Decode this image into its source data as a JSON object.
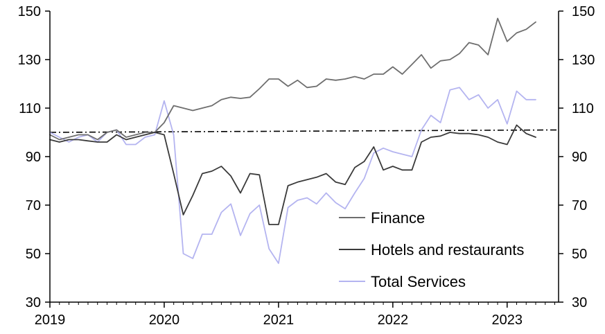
{
  "chart_data": {
    "type": "line",
    "title": "",
    "xlabel": "",
    "ylabel": "",
    "ylim": [
      30,
      150
    ],
    "y_ticks": [
      30,
      50,
      70,
      90,
      110,
      130,
      150
    ],
    "y_right_ticks": [
      30,
      50,
      70,
      90,
      110,
      130,
      150
    ],
    "xlim": [
      2019.0,
      2023.45
    ],
    "x_ticks": [
      2019,
      2020,
      2021,
      2022,
      2023
    ],
    "x_tick_labels": [
      "2019",
      "2020",
      "2021",
      "2022",
      "2023"
    ],
    "grid": false,
    "legend": {
      "placement": "bottom-center",
      "entries": [
        "Finance",
        "Hotels and restaurants",
        "Total Services"
      ]
    },
    "reference_line": {
      "style": "dash-dot",
      "color": "#000000",
      "x": [
        2019.0,
        2023.45
      ],
      "y": [
        100,
        101
      ]
    },
    "x": [
      2019.0,
      2019.083,
      2019.167,
      2019.25,
      2019.333,
      2019.417,
      2019.5,
      2019.583,
      2019.667,
      2019.75,
      2019.833,
      2019.917,
      2020.0,
      2020.083,
      2020.167,
      2020.25,
      2020.333,
      2020.417,
      2020.5,
      2020.583,
      2020.667,
      2020.75,
      2020.833,
      2020.917,
      2021.0,
      2021.083,
      2021.167,
      2021.25,
      2021.333,
      2021.417,
      2021.5,
      2021.583,
      2021.667,
      2021.75,
      2021.833,
      2021.917,
      2022.0,
      2022.083,
      2022.167,
      2022.25,
      2022.333,
      2022.417,
      2022.5,
      2022.583,
      2022.667,
      2022.75,
      2022.833,
      2022.917,
      2023.0,
      2023.083,
      2023.167,
      2023.25
    ],
    "series": [
      {
        "name": "Finance",
        "color": "#6e6e6e",
        "values": [
          99,
          97,
          98,
          99,
          99,
          97,
          100,
          101,
          98,
          99,
          100,
          100,
          104,
          111,
          110,
          109,
          110,
          111,
          113.5,
          114.5,
          114,
          114.5,
          118,
          122,
          122,
          119,
          121.5,
          118.5,
          119,
          122,
          121.5,
          122,
          123,
          122,
          124,
          124,
          127,
          124,
          128,
          132,
          126.5,
          129.5,
          130,
          132.5,
          137,
          136,
          132,
          147,
          137.5,
          141,
          142.5,
          145.5
        ]
      },
      {
        "name": "Hotels and restaurants",
        "color": "#3a3a3a",
        "values": [
          97,
          96,
          97,
          97,
          96.5,
          96,
          96,
          99,
          97,
          98,
          99,
          100,
          99,
          83,
          66,
          74,
          83,
          84,
          86,
          82,
          75,
          83,
          82.5,
          62,
          62,
          78,
          79.5,
          80.5,
          81.5,
          83,
          79.5,
          78.5,
          85.5,
          88,
          94,
          84.5,
          86,
          84.5,
          84.5,
          96,
          98,
          98.5,
          100,
          99.5,
          99.5,
          99,
          98,
          96,
          95,
          103,
          99.5,
          98
        ]
      },
      {
        "name": "Total Services",
        "color": "#b4b4f0",
        "values": [
          100,
          98,
          96,
          98,
          99,
          96,
          100,
          101,
          95,
          95,
          98,
          99,
          113,
          99,
          50,
          48,
          58,
          58,
          67,
          70.5,
          57.5,
          66.5,
          70,
          52,
          46,
          69,
          72,
          73,
          70.5,
          75,
          71,
          68.5,
          75,
          81,
          91.5,
          93.5,
          92,
          91,
          90,
          101,
          107,
          104,
          117.5,
          118.5,
          113.5,
          115.5,
          110,
          113.5,
          103.5,
          117,
          113.5,
          113.5
        ]
      }
    ]
  }
}
